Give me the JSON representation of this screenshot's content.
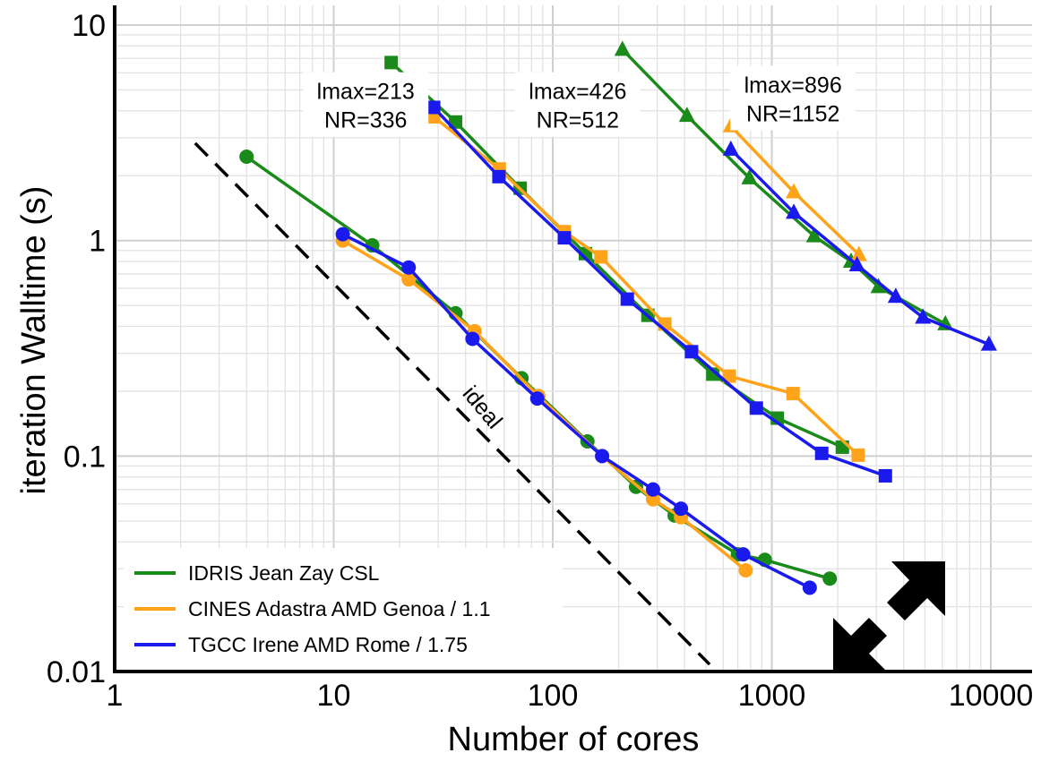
{
  "chart_data": {
    "type": "line",
    "xlabel": "Number of cores",
    "ylabel": "iteration Walltime (s)",
    "xscale": "log",
    "yscale": "log",
    "xlim": [
      1,
      15000
    ],
    "ylim": [
      0.01,
      10
    ],
    "xticks": [
      1,
      10,
      100,
      1000,
      10000
    ],
    "xtick_labels": [
      "1",
      "10",
      "100",
      "1000",
      "10000"
    ],
    "yticks": [
      0.01,
      0.1,
      1,
      10
    ],
    "ytick_labels": [
      "0.01",
      "0.1",
      "1",
      "10"
    ],
    "grid": true,
    "legend_position": "bottom-left",
    "colors": {
      "IDRIS": "#1a8a1a",
      "CINES": "#ffa31a",
      "TGCC": "#1a1aee",
      "ideal": "#000000"
    },
    "legend": [
      {
        "name": "IDRIS Jean Zay CSL",
        "color": "#1a8a1a"
      },
      {
        "name": "CINES Adastra AMD Genoa / 1.1",
        "color": "#ffa31a"
      },
      {
        "name": "TGCC Irene AMD Rome / 1.75",
        "color": "#1a1aee"
      }
    ],
    "annotations": [
      {
        "lines": [
          "lmax=213",
          "NR=336"
        ],
        "x": 14,
        "y": 4.2
      },
      {
        "lines": [
          "lmax=426",
          "NR=512"
        ],
        "x": 130,
        "y": 4.2
      },
      {
        "lines": [
          "lmax=896",
          "NR=1152"
        ],
        "x": 1250,
        "y": 4.5
      },
      {
        "lines": [
          "ideal"
        ],
        "x": 45,
        "y": 0.16
      }
    ],
    "ideal": {
      "x": [
        2.33,
        520
      ],
      "y": [
        2.83,
        0.0108
      ]
    },
    "series": [
      {
        "machine": "IDRIS",
        "marker": "circle",
        "group": "lmax=213",
        "x": [
          4,
          15,
          36,
          72,
          144,
          240,
          360,
          700,
          930,
          1840
        ],
        "y": [
          2.45,
          0.95,
          0.46,
          0.23,
          0.117,
          0.072,
          0.053,
          0.035,
          0.033,
          0.027
        ]
      },
      {
        "machine": "CINES",
        "marker": "circle",
        "group": "lmax=213",
        "x": [
          11,
          22,
          44,
          86,
          168,
          287,
          385,
          760
        ],
        "y": [
          1.0,
          0.66,
          0.38,
          0.19,
          0.1,
          0.063,
          0.052,
          0.0295
        ]
      },
      {
        "machine": "TGCC",
        "marker": "circle",
        "group": "lmax=213",
        "x": [
          11,
          22,
          43,
          85,
          168,
          287,
          385,
          740,
          1490
        ],
        "y": [
          1.07,
          0.75,
          0.35,
          0.185,
          0.1,
          0.07,
          0.057,
          0.035,
          0.0245
        ]
      },
      {
        "machine": "IDRIS",
        "marker": "square",
        "group": "lmax=426",
        "x": [
          18.3,
          36,
          71,
          141,
          272,
          538,
          1060,
          2100
        ],
        "y": [
          6.7,
          3.55,
          1.75,
          0.87,
          0.45,
          0.24,
          0.15,
          0.11
        ]
      },
      {
        "machine": "CINES",
        "marker": "square",
        "group": "lmax=426",
        "x": [
          28.6,
          57,
          113,
          166,
          325,
          640,
          1250,
          2480
        ],
        "y": [
          3.75,
          2.15,
          1.1,
          0.84,
          0.41,
          0.235,
          0.195,
          0.101
        ]
      },
      {
        "machine": "TGCC",
        "marker": "square",
        "group": "lmax=426",
        "x": [
          28.6,
          56.8,
          113,
          219,
          430,
          850,
          1690,
          3300
        ],
        "y": [
          4.15,
          1.98,
          1.03,
          0.535,
          0.305,
          0.167,
          0.103,
          0.081
        ]
      },
      {
        "machine": "IDRIS",
        "marker": "triangle",
        "group": "lmax=896",
        "x": [
          208,
          410,
          790,
          1560,
          2300,
          3070,
          6200
        ],
        "y": [
          7.7,
          3.8,
          1.95,
          1.05,
          0.8,
          0.61,
          0.41
        ]
      },
      {
        "machine": "CINES",
        "marker": "triangle",
        "group": "lmax=896",
        "x": [
          650,
          1260,
          2500
        ],
        "y": [
          3.4,
          1.68,
          0.86
        ]
      },
      {
        "machine": "TGCC",
        "marker": "triangle",
        "group": "lmax=896",
        "x": [
          650,
          1260,
          2450,
          3680,
          4900,
          9800
        ],
        "y": [
          2.65,
          1.35,
          0.77,
          0.55,
          0.44,
          0.33
        ]
      }
    ]
  },
  "overlay": {
    "icon": "resize-arrows-icon"
  }
}
